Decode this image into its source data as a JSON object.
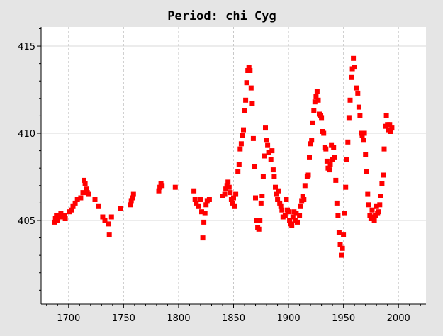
{
  "chart_data": {
    "type": "scatter",
    "title": "Period: chi Cyg",
    "xlabel": "",
    "ylabel": "",
    "xlim": [
      1675,
      2025
    ],
    "ylim": [
      400.2,
      416.1
    ],
    "x_ticks": [
      1700,
      1750,
      1800,
      1850,
      1900,
      1950,
      2000
    ],
    "y_ticks": [
      405,
      410,
      415
    ],
    "grid": true,
    "series": [
      {
        "color": "#ff0000",
        "points": [
          [
            1687,
            404.9
          ],
          [
            1688,
            405.1
          ],
          [
            1689,
            405.3
          ],
          [
            1690,
            405.0
          ],
          [
            1692,
            405.2
          ],
          [
            1693,
            405.4
          ],
          [
            1694,
            405.2
          ],
          [
            1696,
            405.3
          ],
          [
            1697,
            405.1
          ],
          [
            1701,
            405.5
          ],
          [
            1703,
            405.6
          ],
          [
            1704,
            405.8
          ],
          [
            1706,
            406.0
          ],
          [
            1708,
            406.2
          ],
          [
            1711,
            406.3
          ],
          [
            1713,
            406.6
          ],
          [
            1714,
            407.3
          ],
          [
            1715,
            407.1
          ],
          [
            1716,
            406.8
          ],
          [
            1717,
            406.6
          ],
          [
            1718,
            406.5
          ],
          [
            1724,
            406.2
          ],
          [
            1727,
            405.8
          ],
          [
            1731,
            405.2
          ],
          [
            1733,
            405.0
          ],
          [
            1736,
            404.8
          ],
          [
            1737,
            404.2
          ],
          [
            1739,
            405.2
          ],
          [
            1747,
            405.7
          ],
          [
            1756,
            405.9
          ],
          [
            1757,
            406.1
          ],
          [
            1758,
            406.3
          ],
          [
            1759,
            406.5
          ],
          [
            1782,
            406.7
          ],
          [
            1783,
            406.9
          ],
          [
            1784,
            407.1
          ],
          [
            1785,
            407.0
          ],
          [
            1797,
            406.9
          ],
          [
            1814,
            406.7
          ],
          [
            1815,
            406.2
          ],
          [
            1816,
            406.0
          ],
          [
            1818,
            405.8
          ],
          [
            1820,
            406.2
          ],
          [
            1821,
            405.5
          ],
          [
            1822,
            404.0
          ],
          [
            1823,
            404.9
          ],
          [
            1824,
            405.4
          ],
          [
            1825,
            405.9
          ],
          [
            1826,
            406.1
          ],
          [
            1828,
            406.2
          ],
          [
            1840,
            406.4
          ],
          [
            1842,
            406.5
          ],
          [
            1843,
            406.8
          ],
          [
            1844,
            407.0
          ],
          [
            1845,
            407.2
          ],
          [
            1846,
            406.9
          ],
          [
            1847,
            406.6
          ],
          [
            1848,
            406.2
          ],
          [
            1849,
            406.0
          ],
          [
            1850,
            406.3
          ],
          [
            1851,
            405.8
          ],
          [
            1852,
            406.5
          ],
          [
            1854,
            407.8
          ],
          [
            1855,
            408.2
          ],
          [
            1856,
            409.1
          ],
          [
            1857,
            409.4
          ],
          [
            1858,
            409.9
          ],
          [
            1859,
            410.2
          ],
          [
            1860,
            411.3
          ],
          [
            1861,
            411.9
          ],
          [
            1862,
            412.9
          ],
          [
            1863,
            413.6
          ],
          [
            1864,
            413.8
          ],
          [
            1865,
            413.6
          ],
          [
            1866,
            412.6
          ],
          [
            1867,
            411.7
          ],
          [
            1868,
            409.7
          ],
          [
            1869,
            408.1
          ],
          [
            1870,
            406.3
          ],
          [
            1871,
            405.0
          ],
          [
            1872,
            404.6
          ],
          [
            1873,
            404.5
          ],
          [
            1874,
            405.0
          ],
          [
            1875,
            406.0
          ],
          [
            1876,
            406.4
          ],
          [
            1877,
            407.5
          ],
          [
            1878,
            408.7
          ],
          [
            1879,
            410.3
          ],
          [
            1880,
            409.6
          ],
          [
            1881,
            409.3
          ],
          [
            1882,
            408.9
          ],
          [
            1884,
            408.5
          ],
          [
            1885,
            409.0
          ],
          [
            1886,
            407.9
          ],
          [
            1887,
            407.5
          ],
          [
            1888,
            406.9
          ],
          [
            1889,
            406.5
          ],
          [
            1890,
            406.2
          ],
          [
            1891,
            406.7
          ],
          [
            1892,
            406.0
          ],
          [
            1893,
            405.8
          ],
          [
            1894,
            405.6
          ],
          [
            1895,
            405.2
          ],
          [
            1897,
            405.3
          ],
          [
            1898,
            406.2
          ],
          [
            1899,
            405.6
          ],
          [
            1900,
            405.5
          ],
          [
            1901,
            405.0
          ],
          [
            1902,
            404.8
          ],
          [
            1903,
            404.7
          ],
          [
            1904,
            405.2
          ],
          [
            1905,
            405.5
          ],
          [
            1906,
            405.0
          ],
          [
            1907,
            405.4
          ],
          [
            1908,
            404.9
          ],
          [
            1910,
            405.3
          ],
          [
            1911,
            405.8
          ],
          [
            1912,
            406.1
          ],
          [
            1913,
            406.4
          ],
          [
            1914,
            406.2
          ],
          [
            1915,
            407.0
          ],
          [
            1917,
            407.5
          ],
          [
            1918,
            407.6
          ],
          [
            1919,
            408.6
          ],
          [
            1920,
            409.4
          ],
          [
            1921,
            409.6
          ],
          [
            1922,
            410.6
          ],
          [
            1923,
            411.3
          ],
          [
            1924,
            411.8
          ],
          [
            1925,
            412.1
          ],
          [
            1926,
            412.4
          ],
          [
            1927,
            411.9
          ],
          [
            1928,
            411.1
          ],
          [
            1929,
            411.0
          ],
          [
            1930,
            410.9
          ],
          [
            1931,
            410.1
          ],
          [
            1932,
            410.0
          ],
          [
            1933,
            409.2
          ],
          [
            1934,
            409.1
          ],
          [
            1935,
            408.4
          ],
          [
            1936,
            408.0
          ],
          [
            1937,
            407.9
          ],
          [
            1938,
            408.2
          ],
          [
            1939,
            409.3
          ],
          [
            1940,
            408.5
          ],
          [
            1941,
            409.2
          ],
          [
            1942,
            408.6
          ],
          [
            1943,
            407.3
          ],
          [
            1944,
            406.0
          ],
          [
            1945,
            405.3
          ],
          [
            1946,
            404.3
          ],
          [
            1947,
            403.6
          ],
          [
            1948,
            403.0
          ],
          [
            1949,
            403.4
          ],
          [
            1950,
            404.2
          ],
          [
            1951,
            405.4
          ],
          [
            1952,
            406.9
          ],
          [
            1953,
            408.5
          ],
          [
            1954,
            409.5
          ],
          [
            1955,
            410.9
          ],
          [
            1956,
            411.9
          ],
          [
            1957,
            413.2
          ],
          [
            1958,
            413.7
          ],
          [
            1959,
            414.3
          ],
          [
            1960,
            413.8
          ],
          [
            1962,
            412.6
          ],
          [
            1963,
            412.3
          ],
          [
            1964,
            411.5
          ],
          [
            1965,
            411.0
          ],
          [
            1966,
            410.0
          ],
          [
            1967,
            409.9
          ],
          [
            1968,
            409.6
          ],
          [
            1969,
            410.0
          ],
          [
            1970,
            408.8
          ],
          [
            1971,
            407.8
          ],
          [
            1972,
            406.5
          ],
          [
            1973,
            405.9
          ],
          [
            1974,
            405.3
          ],
          [
            1975,
            405.1
          ],
          [
            1976,
            405.6
          ],
          [
            1977,
            405.2
          ],
          [
            1978,
            405.0
          ],
          [
            1979,
            405.3
          ],
          [
            1980,
            405.8
          ],
          [
            1981,
            405.4
          ],
          [
            1982,
            405.5
          ],
          [
            1983,
            405.9
          ],
          [
            1984,
            406.4
          ],
          [
            1985,
            407.1
          ],
          [
            1986,
            407.6
          ],
          [
            1987,
            409.1
          ],
          [
            1988,
            410.4
          ],
          [
            1989,
            411.0
          ],
          [
            1990,
            410.5
          ],
          [
            1991,
            410.2
          ],
          [
            1992,
            410.5
          ],
          [
            1993,
            410.1
          ],
          [
            1994,
            410.3
          ]
        ]
      }
    ]
  }
}
